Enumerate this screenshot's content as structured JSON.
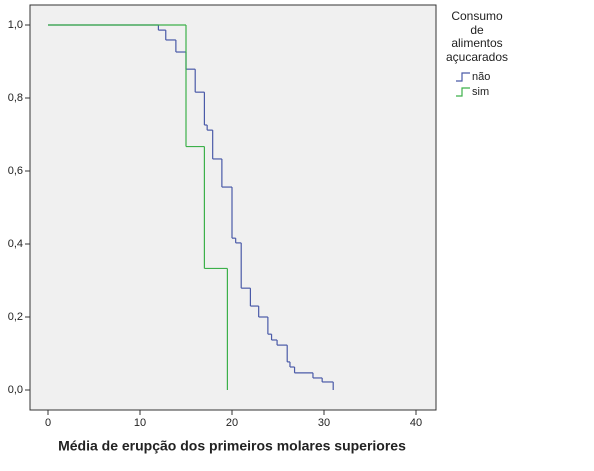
{
  "chart_data": {
    "type": "step",
    "x_label": "Média de erupção dos primeiros molares superiores",
    "legend_title": "Consumo de alimentos açucarados",
    "xlim": [
      0,
      40
    ],
    "xticks": [
      0,
      10,
      20,
      30,
      40
    ],
    "ylim": [
      0,
      1
    ],
    "yticks": [
      {
        "value": 0,
        "label": "0,0"
      },
      {
        "value": 0.2,
        "label": "0,2"
      },
      {
        "value": 0.4,
        "label": "0,4"
      },
      {
        "value": 0.6,
        "label": "0,6"
      },
      {
        "value": 0.8,
        "label": "0,8"
      },
      {
        "value": 1,
        "label": "1,0"
      }
    ],
    "series": [
      {
        "name": "não",
        "color": "#4a5aa8",
        "x": [
          0,
          12,
          12.8,
          13.9,
          15,
          16,
          17,
          17.3,
          17.9,
          18.9,
          20,
          20.4,
          21,
          22,
          22.9,
          23.9,
          24.3,
          24.9,
          26,
          26.3,
          26.8,
          28.8,
          29.8,
          31
        ],
        "values": [
          1,
          0.986,
          0.959,
          0.926,
          0.879,
          0.816,
          0.726,
          0.712,
          0.633,
          0.556,
          0.416,
          0.403,
          0.279,
          0.23,
          0.2,
          0.153,
          0.137,
          0.123,
          0.077,
          0.063,
          0.047,
          0.033,
          0.022,
          0
        ]
      },
      {
        "name": "sim",
        "color": "#3cb04a",
        "x": [
          0,
          15,
          17,
          19.5
        ],
        "values": [
          1,
          0.667,
          0.333,
          0
        ]
      }
    ]
  }
}
